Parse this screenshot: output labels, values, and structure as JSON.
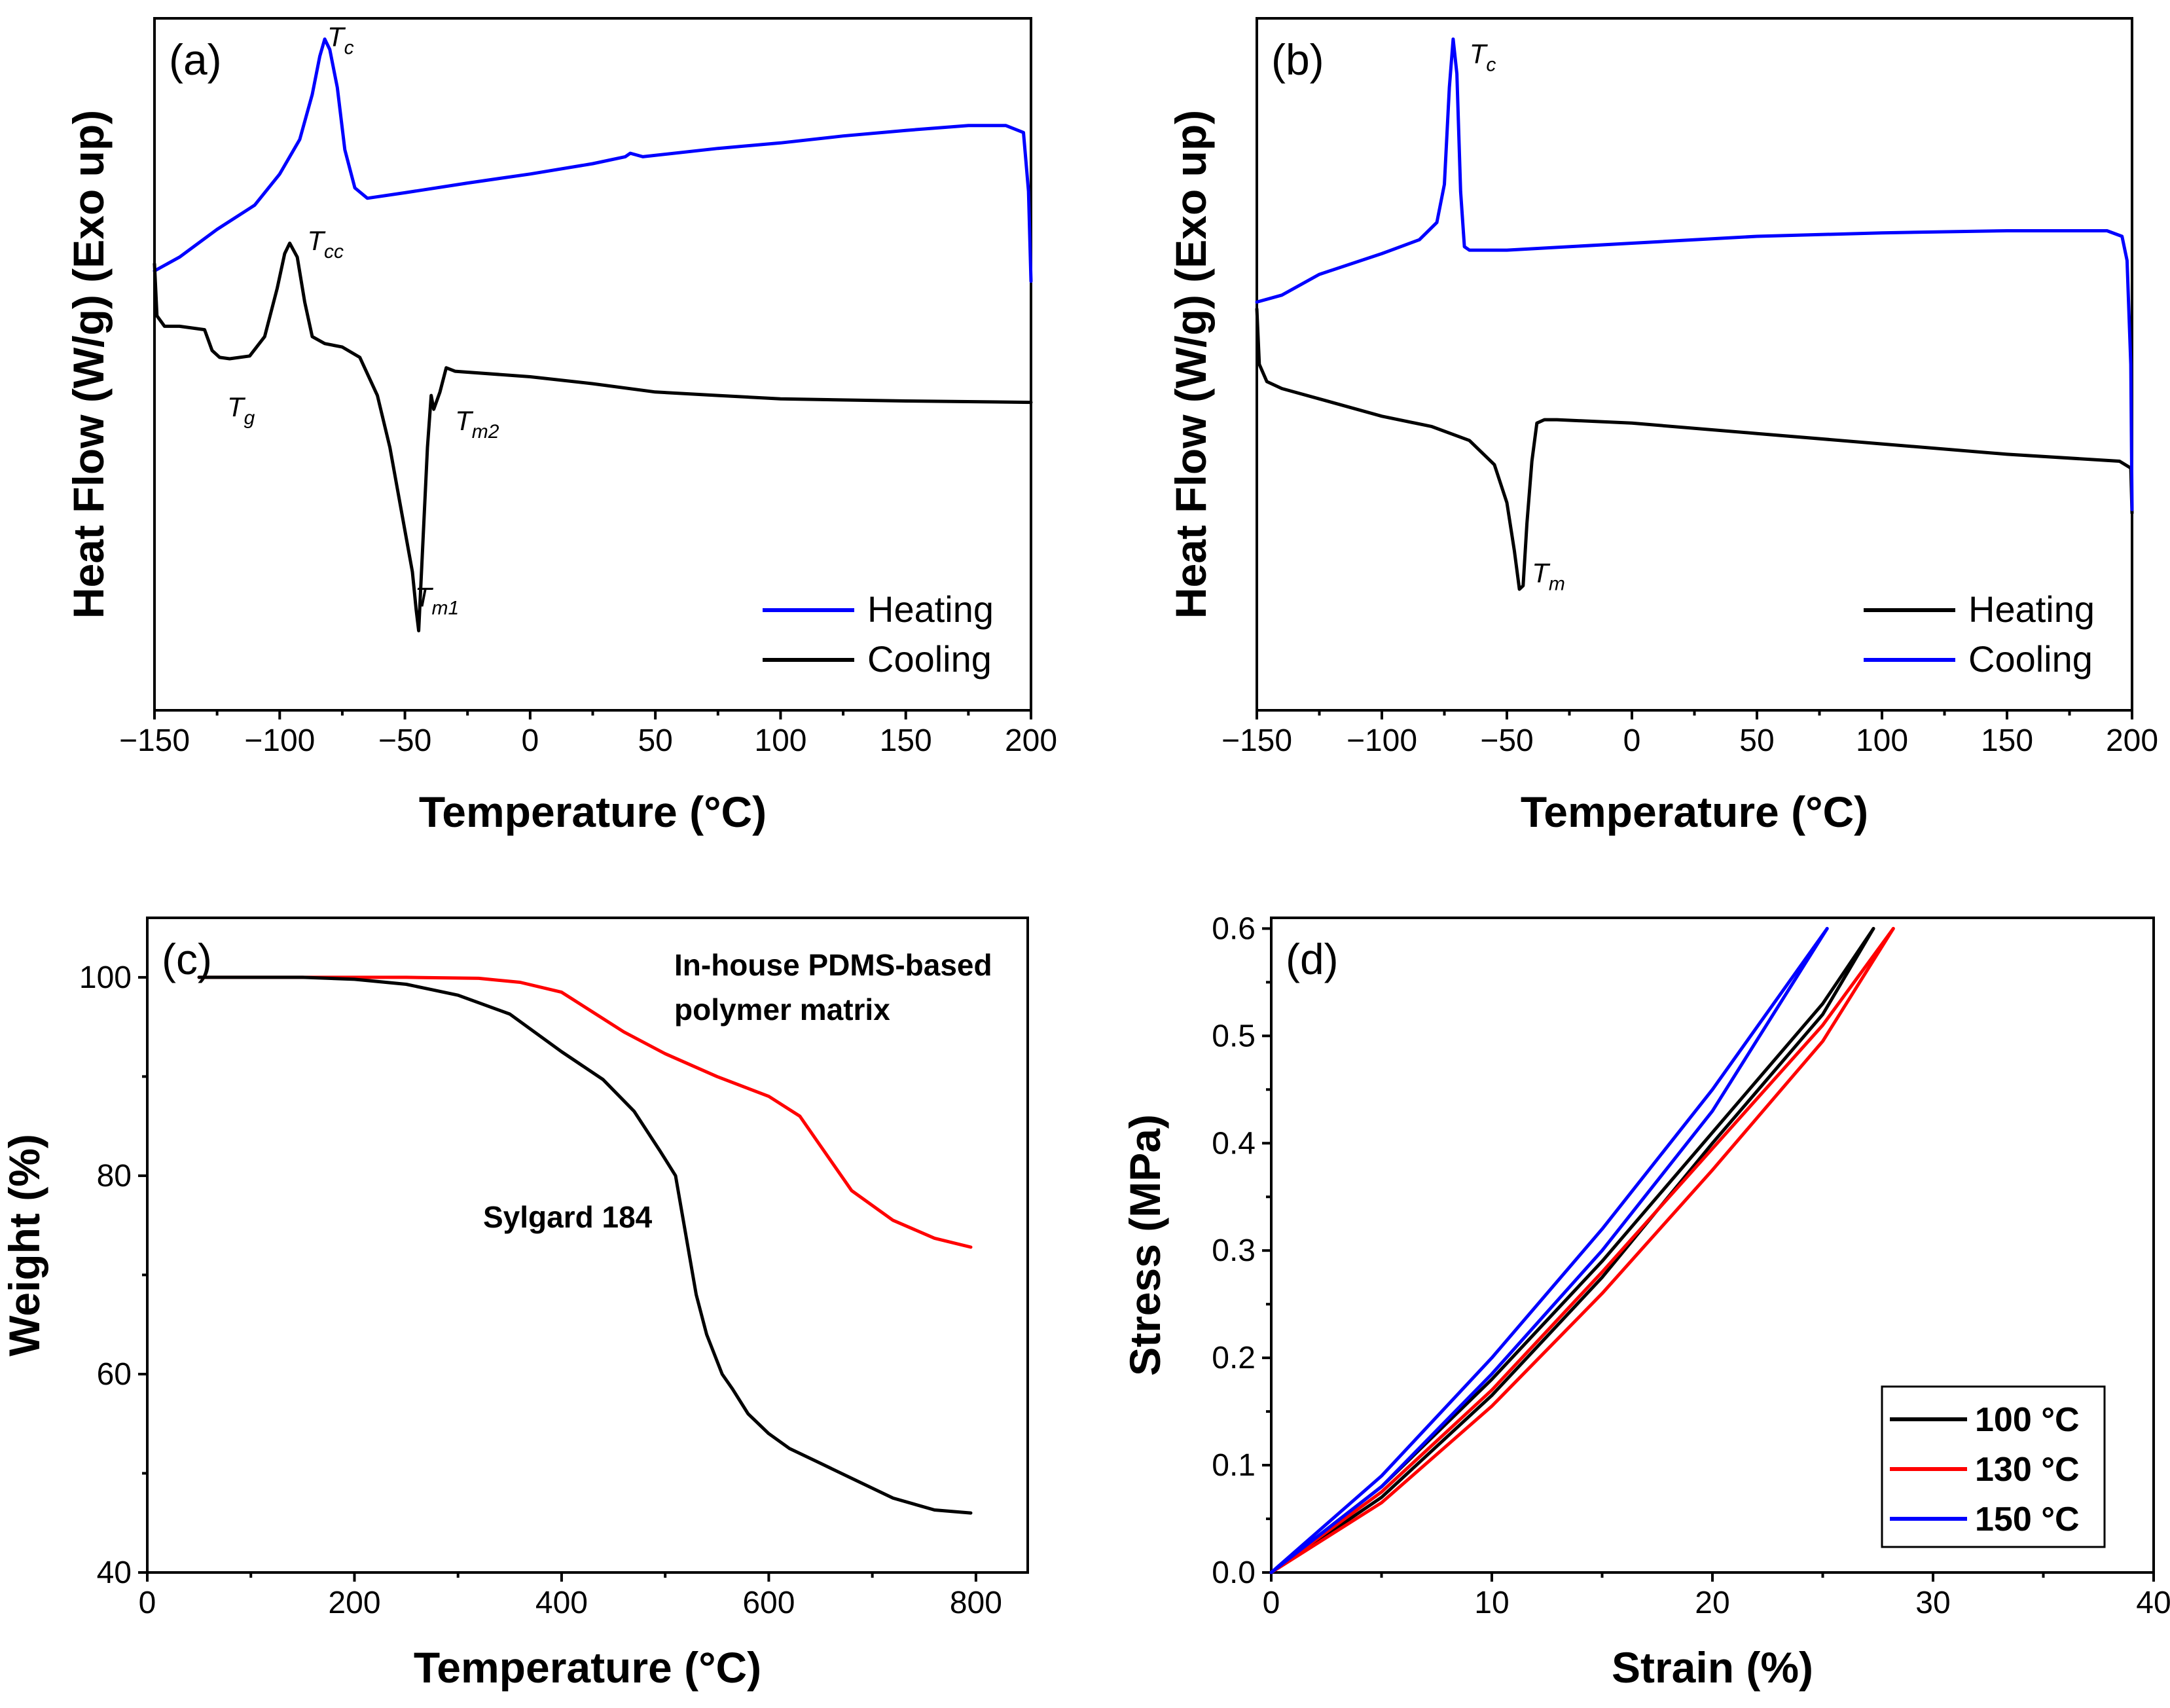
{
  "chart_data": [
    {
      "type": "line",
      "panel": "(a)",
      "xlabel": "Temperature (°C)",
      "ylabel": "Heat Flow (W/g) (Exo up)",
      "xlim": [
        -150,
        200
      ],
      "ylim": [
        0,
        10
      ],
      "xticks": [
        "−150",
        "−100",
        "−50",
        "0",
        "50",
        "100",
        "150",
        "200"
      ],
      "legend": {
        "placement": "bottom-right",
        "entries": [
          {
            "name": "Heating",
            "color": "#0000ff"
          },
          {
            "name": "Cooling",
            "color": "#000000"
          }
        ]
      },
      "annotations": [
        {
          "base": "T",
          "sub": "c",
          "x": -81,
          "y": 9.6,
          "color": "#1a1aff"
        },
        {
          "base": "T",
          "sub": "cc",
          "x": -89,
          "y": 6.65,
          "color": "#000000"
        },
        {
          "base": "T",
          "sub": "g",
          "x": -121,
          "y": 4.25,
          "color": "#000000"
        },
        {
          "base": "T",
          "sub": "m2",
          "x": -30,
          "y": 4.05,
          "color": "#000000"
        },
        {
          "base": "T",
          "sub": "m1",
          "x": -46,
          "y": 1.5,
          "color": "#000000"
        }
      ],
      "series": [
        {
          "name": "Heating",
          "color": "#0000ff",
          "points": [
            [
              -150,
              6.35
            ],
            [
              -140,
              6.55
            ],
            [
              -125,
              6.95
            ],
            [
              -110,
              7.3
            ],
            [
              -100,
              7.75
            ],
            [
              -92,
              8.25
            ],
            [
              -87,
              8.9
            ],
            [
              -84,
              9.45
            ],
            [
              -82,
              9.7
            ],
            [
              -80,
              9.55
            ],
            [
              -77,
              9.0
            ],
            [
              -74,
              8.1
            ],
            [
              -70,
              7.55
            ],
            [
              -65,
              7.4
            ],
            [
              -50,
              7.48
            ],
            [
              -25,
              7.62
            ],
            [
              0,
              7.75
            ],
            [
              25,
              7.9
            ],
            [
              38,
              8.0
            ],
            [
              40,
              8.05
            ],
            [
              45,
              8.0
            ],
            [
              75,
              8.12
            ],
            [
              100,
              8.2
            ],
            [
              125,
              8.3
            ],
            [
              150,
              8.38
            ],
            [
              175,
              8.45
            ],
            [
              190,
              8.45
            ],
            [
              197,
              8.35
            ],
            [
              199,
              7.5
            ],
            [
              200,
              6.2
            ]
          ]
        },
        {
          "name": "Cooling",
          "color": "#000000",
          "points": [
            [
              -150,
              6.45
            ],
            [
              -149,
              5.7
            ],
            [
              -146,
              5.55
            ],
            [
              -140,
              5.55
            ],
            [
              -130,
              5.5
            ],
            [
              -127,
              5.2
            ],
            [
              -124,
              5.1
            ],
            [
              -120,
              5.08
            ],
            [
              -112,
              5.12
            ],
            [
              -106,
              5.4
            ],
            [
              -101,
              6.1
            ],
            [
              -98,
              6.6
            ],
            [
              -96,
              6.75
            ],
            [
              -93,
              6.55
            ],
            [
              -90,
              5.9
            ],
            [
              -87,
              5.4
            ],
            [
              -82,
              5.3
            ],
            [
              -75,
              5.25
            ],
            [
              -68,
              5.1
            ],
            [
              -61,
              4.55
            ],
            [
              -56,
              3.8
            ],
            [
              -51,
              2.8
            ],
            [
              -47,
              2.0
            ],
            [
              -45.5,
              1.45
            ],
            [
              -44.5,
              1.15
            ],
            [
              -43,
              2.3
            ],
            [
              -41,
              3.8
            ],
            [
              -39.5,
              4.55
            ],
            [
              -38.5,
              4.35
            ],
            [
              -36,
              4.6
            ],
            [
              -33.5,
              4.95
            ],
            [
              -30,
              4.9
            ],
            [
              0,
              4.82
            ],
            [
              25,
              4.72
            ],
            [
              50,
              4.6
            ],
            [
              75,
              4.55
            ],
            [
              100,
              4.5
            ],
            [
              150,
              4.47
            ],
            [
              200,
              4.45
            ]
          ]
        }
      ]
    },
    {
      "type": "line",
      "panel": "(b)",
      "xlabel": "Temperature (°C)",
      "ylabel": "Heat Flow (W/g) (Exo up)",
      "xlim": [
        -150,
        200
      ],
      "ylim": [
        0,
        10
      ],
      "xticks": [
        "−150",
        "−100",
        "−50",
        "0",
        "50",
        "100",
        "150",
        "200"
      ],
      "legend": {
        "placement": "bottom-right",
        "entries": [
          {
            "name": "Heating",
            "color": "#000000"
          },
          {
            "name": "Cooling",
            "color": "#0000ff"
          }
        ]
      },
      "annotations": [
        {
          "base": "T",
          "sub": "c",
          "x": -65,
          "y": 9.35,
          "color": "#1a1aff"
        },
        {
          "base": "T",
          "sub": "m",
          "x": -40,
          "y": 1.85,
          "color": "#000000"
        }
      ],
      "series": [
        {
          "name": "Heating",
          "color": "#000000",
          "points": [
            [
              -150,
              5.8
            ],
            [
              -149,
              5.0
            ],
            [
              -146,
              4.75
            ],
            [
              -140,
              4.65
            ],
            [
              -125,
              4.5
            ],
            [
              -100,
              4.25
            ],
            [
              -80,
              4.1
            ],
            [
              -65,
              3.9
            ],
            [
              -55,
              3.55
            ],
            [
              -50,
              3.0
            ],
            [
              -47,
              2.3
            ],
            [
              -45,
              1.75
            ],
            [
              -43.5,
              1.8
            ],
            [
              -42,
              2.7
            ],
            [
              -40,
              3.6
            ],
            [
              -38,
              4.15
            ],
            [
              -35,
              4.2
            ],
            [
              -30,
              4.2
            ],
            [
              0,
              4.15
            ],
            [
              50,
              4.0
            ],
            [
              100,
              3.85
            ],
            [
              150,
              3.7
            ],
            [
              195,
              3.6
            ],
            [
              199.5,
              3.5
            ],
            [
              200,
              2.85
            ]
          ]
        },
        {
          "name": "Cooling",
          "color": "#0000ff",
          "points": [
            [
              -150,
              5.9
            ],
            [
              -140,
              6.0
            ],
            [
              -125,
              6.3
            ],
            [
              -100,
              6.6
            ],
            [
              -85,
              6.8
            ],
            [
              -78,
              7.05
            ],
            [
              -75,
              7.6
            ],
            [
              -73,
              9.0
            ],
            [
              -71.5,
              9.7
            ],
            [
              -70,
              9.2
            ],
            [
              -68.5,
              7.5
            ],
            [
              -67,
              6.7
            ],
            [
              -65,
              6.65
            ],
            [
              -50,
              6.65
            ],
            [
              0,
              6.75
            ],
            [
              50,
              6.85
            ],
            [
              100,
              6.9
            ],
            [
              150,
              6.93
            ],
            [
              190,
              6.93
            ],
            [
              196,
              6.85
            ],
            [
              198,
              6.5
            ],
            [
              199.5,
              5.0
            ],
            [
              200,
              2.9
            ]
          ]
        }
      ]
    },
    {
      "type": "line",
      "panel": "(c)",
      "xlabel": "Temperature (°C)",
      "ylabel": "Weight (%)",
      "xlim": [
        0,
        850
      ],
      "ylim": [
        40,
        106
      ],
      "xticks": [
        "0",
        "200",
        "400",
        "600",
        "800"
      ],
      "yticks": [
        "40",
        "60",
        "80",
        "100"
      ],
      "annotations": [
        {
          "text": "In-house PDMS-based",
          "color": "#ff0000"
        },
        {
          "text": "polymer matrix",
          "color": "#ff0000"
        },
        {
          "text": "Sylgard 184",
          "color": "#000000"
        }
      ],
      "series": [
        {
          "name": "In-house PDMS-based polymer matrix",
          "color": "#ff0000",
          "points": [
            [
              50,
              100
            ],
            [
              150,
              100
            ],
            [
              250,
              100
            ],
            [
              320,
              99.9
            ],
            [
              360,
              99.5
            ],
            [
              400,
              98.5
            ],
            [
              430,
              96.5
            ],
            [
              460,
              94.5
            ],
            [
              500,
              92.3
            ],
            [
              550,
              90.0
            ],
            [
              600,
              88.0
            ],
            [
              630,
              86.0
            ],
            [
              650,
              83.0
            ],
            [
              680,
              78.5
            ],
            [
              720,
              75.5
            ],
            [
              760,
              73.7
            ],
            [
              795,
              72.8
            ]
          ]
        },
        {
          "name": "Sylgard 184",
          "color": "#000000",
          "points": [
            [
              50,
              100
            ],
            [
              150,
              100
            ],
            [
              200,
              99.8
            ],
            [
              250,
              99.3
            ],
            [
              300,
              98.2
            ],
            [
              350,
              96.3
            ],
            [
              400,
              92.5
            ],
            [
              440,
              89.7
            ],
            [
              470,
              86.5
            ],
            [
              495,
              82.5
            ],
            [
              510,
              80.0
            ],
            [
              520,
              74.0
            ],
            [
              530,
              68.0
            ],
            [
              540,
              64.0
            ],
            [
              555,
              60.0
            ],
            [
              565,
              58.5
            ],
            [
              580,
              56.0
            ],
            [
              600,
              54.0
            ],
            [
              620,
              52.5
            ],
            [
              650,
              51.0
            ],
            [
              680,
              49.5
            ],
            [
              720,
              47.5
            ],
            [
              760,
              46.3
            ],
            [
              795,
              46.0
            ]
          ]
        }
      ]
    },
    {
      "type": "line",
      "panel": "(d)",
      "xlabel": "Strain (%)",
      "ylabel": "Stress (MPa)",
      "xlim": [
        0,
        40
      ],
      "ylim": [
        0,
        0.61
      ],
      "xticks": [
        "0",
        "10",
        "20",
        "30",
        "40"
      ],
      "yticks": [
        "0.0",
        "0.1",
        "0.2",
        "0.3",
        "0.4",
        "0.5",
        "0.6"
      ],
      "legend": {
        "placement": "bottom-right",
        "entries": [
          {
            "name": "100 °C",
            "color": "#000000"
          },
          {
            "name": "130 °C",
            "color": "#ff0000"
          },
          {
            "name": "150 °C",
            "color": "#0000ff"
          }
        ]
      },
      "series": [
        {
          "name": "100 °C",
          "color": "#000000",
          "loops": [
            [
              [
                0,
                0
              ],
              [
                5,
                0.08
              ],
              [
                10,
                0.18
              ],
              [
                15,
                0.29
              ],
              [
                20,
                0.41
              ],
              [
                25,
                0.53
              ],
              [
                27.3,
                0.6
              ]
            ],
            [
              [
                27.3,
                0.6
              ],
              [
                25,
                0.52
              ],
              [
                20,
                0.4
              ],
              [
                15,
                0.275
              ],
              [
                10,
                0.165
              ],
              [
                5,
                0.07
              ],
              [
                0,
                0
              ]
            ]
          ]
        },
        {
          "name": "130 °C",
          "color": "#ff0000",
          "loops": [
            [
              [
                0,
                0
              ],
              [
                5,
                0.075
              ],
              [
                10,
                0.17
              ],
              [
                15,
                0.28
              ],
              [
                20,
                0.395
              ],
              [
                25,
                0.51
              ],
              [
                28.2,
                0.6
              ]
            ],
            [
              [
                28.2,
                0.6
              ],
              [
                25,
                0.495
              ],
              [
                20,
                0.375
              ],
              [
                15,
                0.26
              ],
              [
                10,
                0.155
              ],
              [
                5,
                0.065
              ],
              [
                0,
                0
              ]
            ]
          ]
        },
        {
          "name": "150 °C",
          "color": "#0000ff",
          "loops": [
            [
              [
                0,
                0
              ],
              [
                5,
                0.09
              ],
              [
                10,
                0.2
              ],
              [
                15,
                0.32
              ],
              [
                20,
                0.45
              ],
              [
                25.2,
                0.6
              ]
            ],
            [
              [
                25.2,
                0.6
              ],
              [
                20,
                0.43
              ],
              [
                15,
                0.3
              ],
              [
                10,
                0.185
              ],
              [
                5,
                0.08
              ],
              [
                0,
                0
              ]
            ]
          ]
        }
      ]
    }
  ]
}
